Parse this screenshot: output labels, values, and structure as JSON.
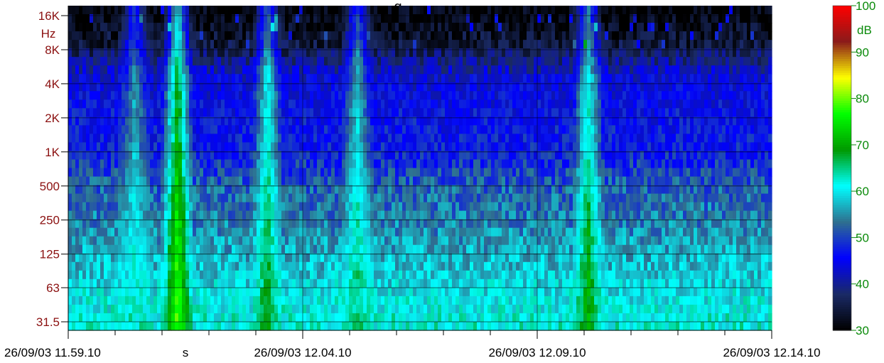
{
  "chart_data": {
    "type": "heatmap",
    "title": "g",
    "y_axis": {
      "unit": "Hz",
      "scale": "log",
      "tick_labels": [
        "16K",
        "8K",
        "4K",
        "2K",
        "1K",
        "500",
        "250",
        "125",
        "63",
        "31.5"
      ],
      "tick_values": [
        16000,
        8000,
        4000,
        2000,
        1000,
        500,
        250,
        125,
        63,
        31.5
      ]
    },
    "x_axis": {
      "tick_labels": [
        "26/09/03 11.59.10",
        "s",
        "26/09/03 12.04.10",
        "26/09/03 12.09.10",
        "26/09/03 12.14.10"
      ],
      "range": [
        "26/09/03 11.59.10",
        "26/09/03 12.14.10"
      ]
    },
    "colorbar": {
      "unit": "dB",
      "range": [
        30,
        100
      ],
      "tick_labels": [
        "100",
        "90",
        "80",
        "70",
        "60",
        "50",
        "40",
        "30"
      ],
      "tick_values": [
        100,
        90,
        80,
        70,
        60,
        50,
        40,
        30
      ],
      "colors": [
        "#000000",
        "#1a2a66",
        "#0000ff",
        "#2f6f8f",
        "#00ffff",
        "#009900",
        "#00ff00",
        "#ffff00",
        "#8b1a1a",
        "#ff0000"
      ]
    },
    "band_levels_db": {
      "bands": [
        "16K",
        "8K",
        "4K",
        "2K",
        "1K",
        "500",
        "250",
        "125",
        "63",
        "31.5"
      ],
      "background_level_db": [
        30,
        34,
        44,
        46,
        47,
        52,
        54,
        57,
        60,
        62
      ],
      "events": [
        {
          "time": "26/09/03 12.00.35",
          "peak_db": 62
        },
        {
          "time": "26/09/03 12.01.30",
          "peak_db": 82
        },
        {
          "time": "26/09/03 12.03.25",
          "peak_db": 70
        },
        {
          "time": "26/09/03 12.05.20",
          "peak_db": 66
        },
        {
          "time": "26/09/03 12.10.15",
          "peak_db": 72
        }
      ]
    },
    "grid": true
  }
}
